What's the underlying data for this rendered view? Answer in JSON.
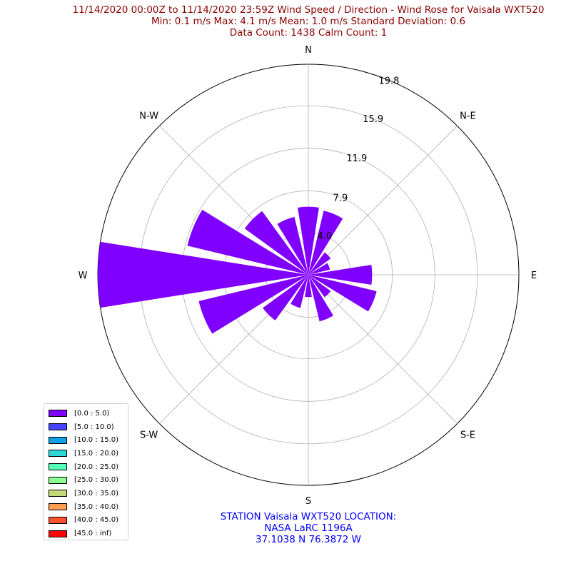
{
  "title_lines": [
    "11/14/2020 00:00Z to 11/14/2020 23:59Z Wind Speed / Direction - Wind Rose for Vaisala WXT520",
    "Min: 0.1 m/s   Max: 4.1 m/s   Mean: 1.0 m/s  Standard Deviation: 0.6",
    "Data Count: 1438  Calm Count:  1"
  ],
  "footer_lines": [
    "STATION Vaisala WXT520 LOCATION:",
    "NASA LaRC 1196A",
    "37.1038 N 76.3872 W"
  ],
  "colors": {
    "title": "#8b0000",
    "footer": "#0000ff",
    "bar": "#8000ff",
    "grid": "#b0b0b0"
  },
  "chart_data": {
    "type": "wind-rose",
    "direction_labels": [
      "N",
      "N-E",
      "E",
      "S-E",
      "S",
      "S-W",
      "W",
      "N-W"
    ],
    "radial_ticks": [
      "4.0",
      "7.9",
      "11.9",
      "15.9",
      "19.8"
    ],
    "radial_tick_values": [
      4.0,
      7.9,
      11.9,
      15.9,
      19.8
    ],
    "rmax": 19.8,
    "sector_count": 16,
    "directions_deg": [
      0,
      22.5,
      45,
      67.5,
      90,
      112.5,
      135,
      157.5,
      180,
      202.5,
      225,
      247.5,
      270,
      292.5,
      315,
      337.5
    ],
    "series": [
      {
        "bin": "[0.0 : 5.0)",
        "values": [
          6.4,
          6.2,
          2.6,
          2.1,
          6.0,
          6.6,
          2.6,
          4.5,
          2.1,
          3.2,
          5.3,
          10.6,
          19.8,
          11.7,
          7.4,
          5.6
        ]
      }
    ],
    "legend": [
      {
        "label": "[0.0 : 5.0)",
        "color": "#8000ff"
      },
      {
        "label": "[5.0 : 10.0)",
        "color": "#4444ff"
      },
      {
        "label": "[10.0 : 15.0)",
        "color": "#11a1e9"
      },
      {
        "label": "[15.0 : 20.0)",
        "color": "#2bdad8"
      },
      {
        "label": "[20.0 : 25.0)",
        "color": "#55ffb9"
      },
      {
        "label": "[25.0 : 30.0)",
        "color": "#8cff93"
      },
      {
        "label": "[30.0 : 35.0)",
        "color": "#c6d97a"
      },
      {
        "label": "[35.0 : 40.0)",
        "color": "#ff9d55"
      },
      {
        "label": "[40.0 : 45.0)",
        "color": "#ff5130"
      },
      {
        "label": "[45.0 : inf)",
        "color": "#ff0000"
      }
    ],
    "legend_placement": "lower-left",
    "grid": true
  }
}
